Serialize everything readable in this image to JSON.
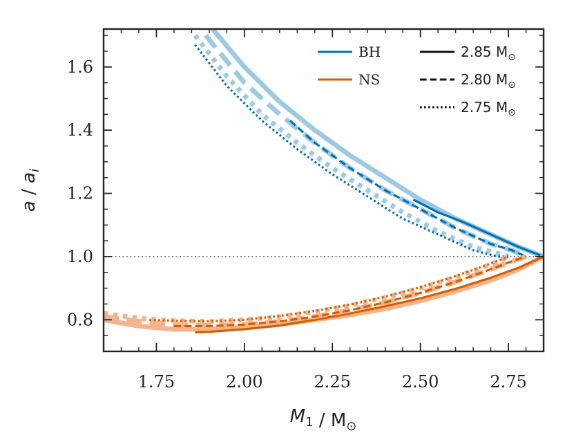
{
  "chart_data": {
    "type": "line",
    "xlabel": "M_1 / M_⊙",
    "ylabel": "a / a_i",
    "xlim": [
      1.6,
      2.85
    ],
    "ylim": [
      0.7,
      1.72
    ],
    "xticks": [
      1.75,
      2.0,
      2.25,
      2.5,
      2.75
    ],
    "xtick_labels": [
      "1.75",
      "2.00",
      "2.25",
      "2.50",
      "2.75"
    ],
    "yticks": [
      0.8,
      1.0,
      1.2,
      1.4,
      1.6
    ],
    "ytick_labels": [
      "0.8",
      "1.0",
      "1.2",
      "1.4",
      "1.6"
    ],
    "reference_line": {
      "y": 1.0,
      "style": "dotted",
      "color": "#808080"
    },
    "grid": false,
    "colors": {
      "BH": "#0072b2",
      "BH_light": "#9ecae1",
      "NS": "#d55e00",
      "NS_light": "#f2b48d"
    },
    "legend": {
      "placement": "top-right",
      "color_entries": [
        {
          "label": "BH",
          "color": "#0072b2"
        },
        {
          "label": "NS",
          "color": "#d55e00"
        }
      ],
      "style_entries": [
        {
          "value": "2.85",
          "unit": "M",
          "sub": "⊙",
          "dash": "solid"
        },
        {
          "value": "2.80",
          "unit": "M",
          "sub": "⊙",
          "dash": "dashed"
        },
        {
          "value": "2.75",
          "unit": "M",
          "sub": "⊙",
          "dash": "dotted"
        }
      ]
    },
    "series": [
      {
        "group": "BH",
        "mass": "2.85",
        "dash": "solid",
        "shade": "light",
        "x": [
          1.91,
          2.0,
          2.1,
          2.2,
          2.3,
          2.4,
          2.5,
          2.6,
          2.7,
          2.78,
          2.85
        ],
        "y": [
          1.72,
          1.6,
          1.49,
          1.4,
          1.32,
          1.25,
          1.18,
          1.12,
          1.07,
          1.03,
          1.0
        ]
      },
      {
        "group": "BH",
        "mass": "2.85",
        "dash": "solid",
        "shade": "dark",
        "x": [
          2.48,
          2.55,
          2.62,
          2.7,
          2.78,
          2.85
        ],
        "y": [
          1.18,
          1.14,
          1.11,
          1.07,
          1.03,
          1.0
        ]
      },
      {
        "group": "BH",
        "mass": "2.80",
        "dash": "dashed",
        "shade": "light",
        "x": [
          1.89,
          2.0,
          2.1,
          2.2,
          2.3,
          2.4,
          2.5,
          2.6,
          2.7,
          2.76,
          2.8
        ],
        "y": [
          1.7,
          1.55,
          1.45,
          1.36,
          1.28,
          1.21,
          1.15,
          1.09,
          1.04,
          1.02,
          1.0
        ]
      },
      {
        "group": "BH",
        "mass": "2.80",
        "dash": "dashed",
        "shade": "dark",
        "x": [
          2.13,
          2.2,
          2.3,
          2.4,
          2.5,
          2.6,
          2.7,
          2.76,
          2.8
        ],
        "y": [
          1.43,
          1.36,
          1.28,
          1.21,
          1.15,
          1.09,
          1.04,
          1.02,
          1.0
        ]
      },
      {
        "group": "BH",
        "mass": "2.75",
        "dash": "dotted",
        "shade": "light",
        "x": [
          1.86,
          1.95,
          2.05,
          2.15,
          2.25,
          2.35,
          2.45,
          2.55,
          2.65,
          2.72,
          2.75
        ],
        "y": [
          1.7,
          1.57,
          1.45,
          1.36,
          1.28,
          1.21,
          1.14,
          1.08,
          1.03,
          1.01,
          1.0
        ]
      },
      {
        "group": "BH",
        "mass": "2.75",
        "dash": "dotted",
        "shade": "dark",
        "x": [
          1.86,
          1.95,
          2.05,
          2.15,
          2.25,
          2.35,
          2.45,
          2.55,
          2.65,
          2.72,
          2.75
        ],
        "y": [
          1.67,
          1.54,
          1.43,
          1.34,
          1.26,
          1.19,
          1.12,
          1.07,
          1.02,
          1.0,
          1.0
        ]
      },
      {
        "group": "NS",
        "mass": "2.85",
        "dash": "solid",
        "shade": "light",
        "x": [
          1.6,
          1.7,
          1.8,
          1.9,
          2.0,
          2.1,
          2.2,
          2.3,
          2.4,
          2.5,
          2.6,
          2.7,
          2.78,
          2.85
        ],
        "y": [
          0.8,
          0.78,
          0.77,
          0.77,
          0.775,
          0.785,
          0.8,
          0.815,
          0.835,
          0.86,
          0.89,
          0.925,
          0.96,
          1.0
        ]
      },
      {
        "group": "NS",
        "mass": "2.85",
        "dash": "solid",
        "shade": "dark",
        "x": [
          1.86,
          1.9,
          2.0,
          2.1,
          2.2,
          2.3,
          2.4,
          2.5,
          2.6,
          2.7,
          2.78,
          2.85
        ],
        "y": [
          0.76,
          0.762,
          0.77,
          0.782,
          0.8,
          0.82,
          0.843,
          0.868,
          0.898,
          0.933,
          0.965,
          1.0
        ]
      },
      {
        "group": "NS",
        "mass": "2.80",
        "dash": "dashed",
        "shade": "light",
        "x": [
          1.6,
          1.7,
          1.8,
          1.9,
          2.0,
          2.1,
          2.2,
          2.3,
          2.4,
          2.5,
          2.6,
          2.7,
          2.76,
          2.8
        ],
        "y": [
          0.81,
          0.795,
          0.785,
          0.782,
          0.785,
          0.795,
          0.81,
          0.83,
          0.855,
          0.885,
          0.92,
          0.96,
          0.985,
          1.0
        ]
      },
      {
        "group": "NS",
        "mass": "2.80",
        "dash": "dashed",
        "shade": "dark",
        "x": [
          1.8,
          1.9,
          2.0,
          2.1,
          2.2,
          2.3,
          2.4,
          2.5,
          2.6,
          2.7,
          2.76,
          2.8
        ],
        "y": [
          0.78,
          0.78,
          0.785,
          0.795,
          0.81,
          0.83,
          0.855,
          0.885,
          0.92,
          0.96,
          0.985,
          1.0
        ]
      },
      {
        "group": "NS",
        "mass": "2.75",
        "dash": "dotted",
        "shade": "light",
        "x": [
          1.6,
          1.7,
          1.8,
          1.9,
          2.0,
          2.1,
          2.2,
          2.3,
          2.4,
          2.5,
          2.6,
          2.7,
          2.75
        ],
        "y": [
          0.82,
          0.805,
          0.797,
          0.795,
          0.8,
          0.81,
          0.825,
          0.845,
          0.87,
          0.9,
          0.935,
          0.975,
          1.0
        ]
      },
      {
        "group": "NS",
        "mass": "2.75",
        "dash": "dotted",
        "shade": "dark",
        "x": [
          1.73,
          1.8,
          1.9,
          2.0,
          2.1,
          2.2,
          2.3,
          2.4,
          2.5,
          2.6,
          2.7,
          2.75
        ],
        "y": [
          0.8,
          0.797,
          0.795,
          0.8,
          0.812,
          0.828,
          0.848,
          0.873,
          0.903,
          0.938,
          0.978,
          1.0
        ]
      }
    ]
  }
}
